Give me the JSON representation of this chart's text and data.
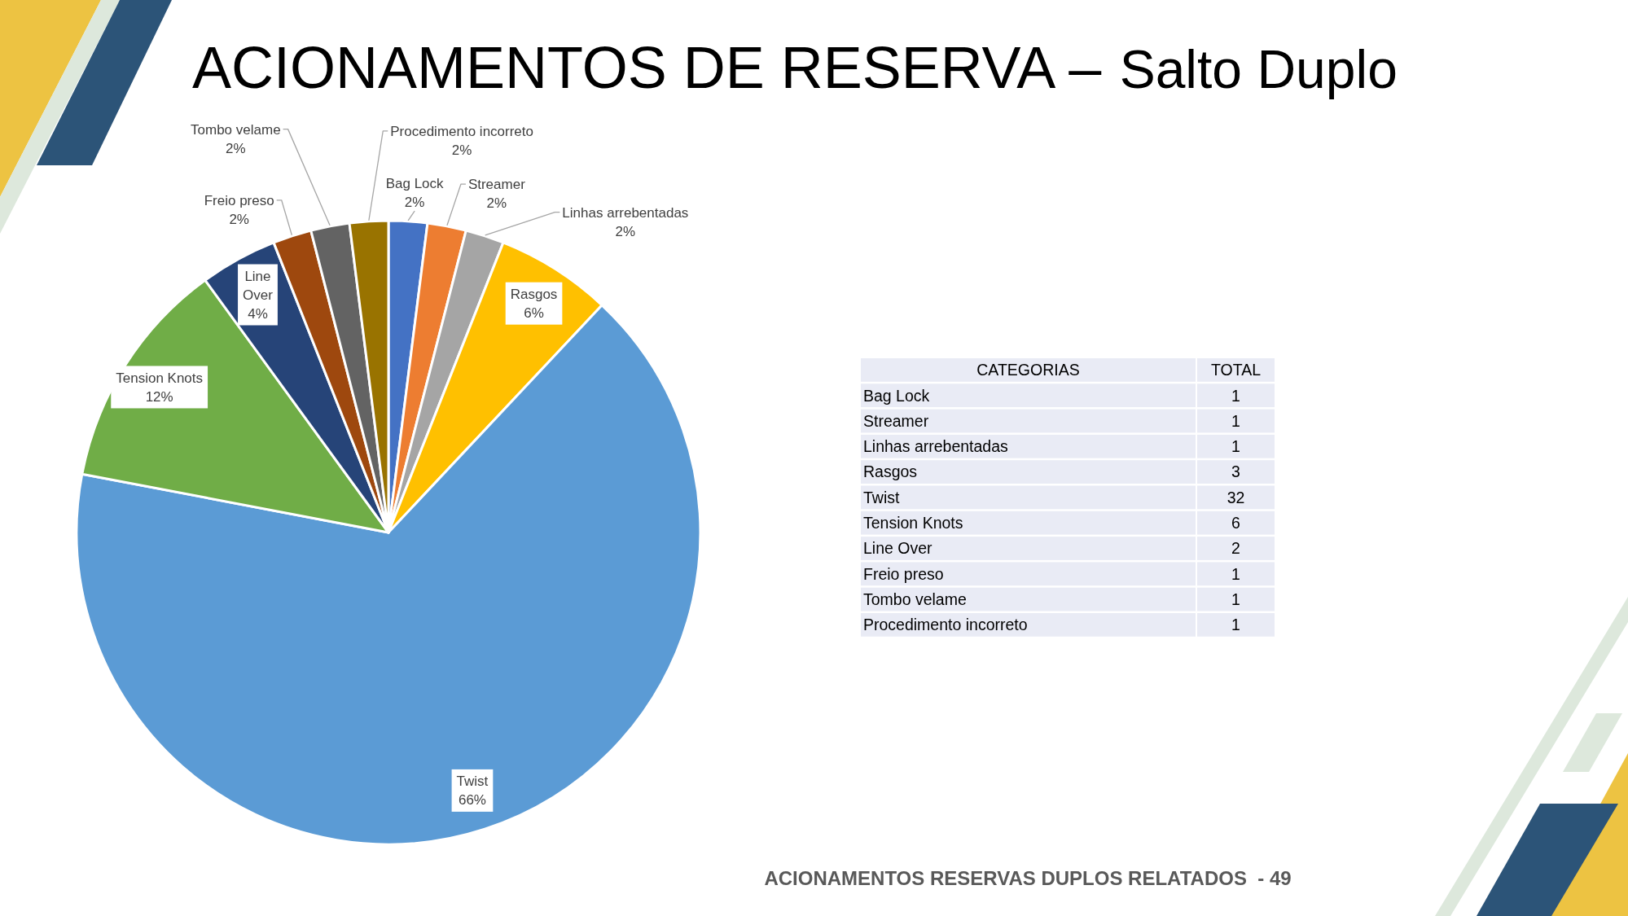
{
  "chart_data": [
    {
      "type": "pie",
      "title": "ACIONAMENTOS DE RESERVA –",
      "subtitle": "Salto Duplo",
      "categories": [
        "Bag Lock",
        "Streamer",
        "Linhas arrebentadas",
        "Rasgos",
        "Twist",
        "Tension Knots",
        "Line Over",
        "Freio preso",
        "Tombo velame",
        "Procedimento incorreto"
      ],
      "values": [
        2,
        2,
        2,
        6,
        66,
        12,
        4,
        2,
        2,
        2
      ],
      "colors": [
        "#4472c4",
        "#ed7d31",
        "#a5a5a5",
        "#ffc000",
        "#5b9bd5",
        "#70ad47",
        "#264478",
        "#9e480e",
        "#636363",
        "#997300"
      ],
      "value_labels": [
        "2%",
        "2%",
        "2%",
        "6%",
        "66%",
        "12%",
        "4%",
        "2%",
        "2%",
        "2%"
      ],
      "annotations": [
        "ACIONAMENTOS RESERVAS DUPLOS RELATADOS  - 49"
      ]
    },
    {
      "type": "other",
      "categories": [
        "Bag Lock",
        "Streamer",
        "Linhas arrebentadas",
        "Rasgos",
        "Twist",
        "Tension Knots",
        "Line Over",
        "Freio preso",
        "Tombo velame",
        "Procedimento incorreto"
      ],
      "values": [
        1,
        1,
        1,
        3,
        32,
        6,
        2,
        1,
        1,
        1
      ],
      "data_labels": true,
      "annotations": [
        "CATEGORIAS",
        "TOTAL"
      ]
    }
  ]
}
